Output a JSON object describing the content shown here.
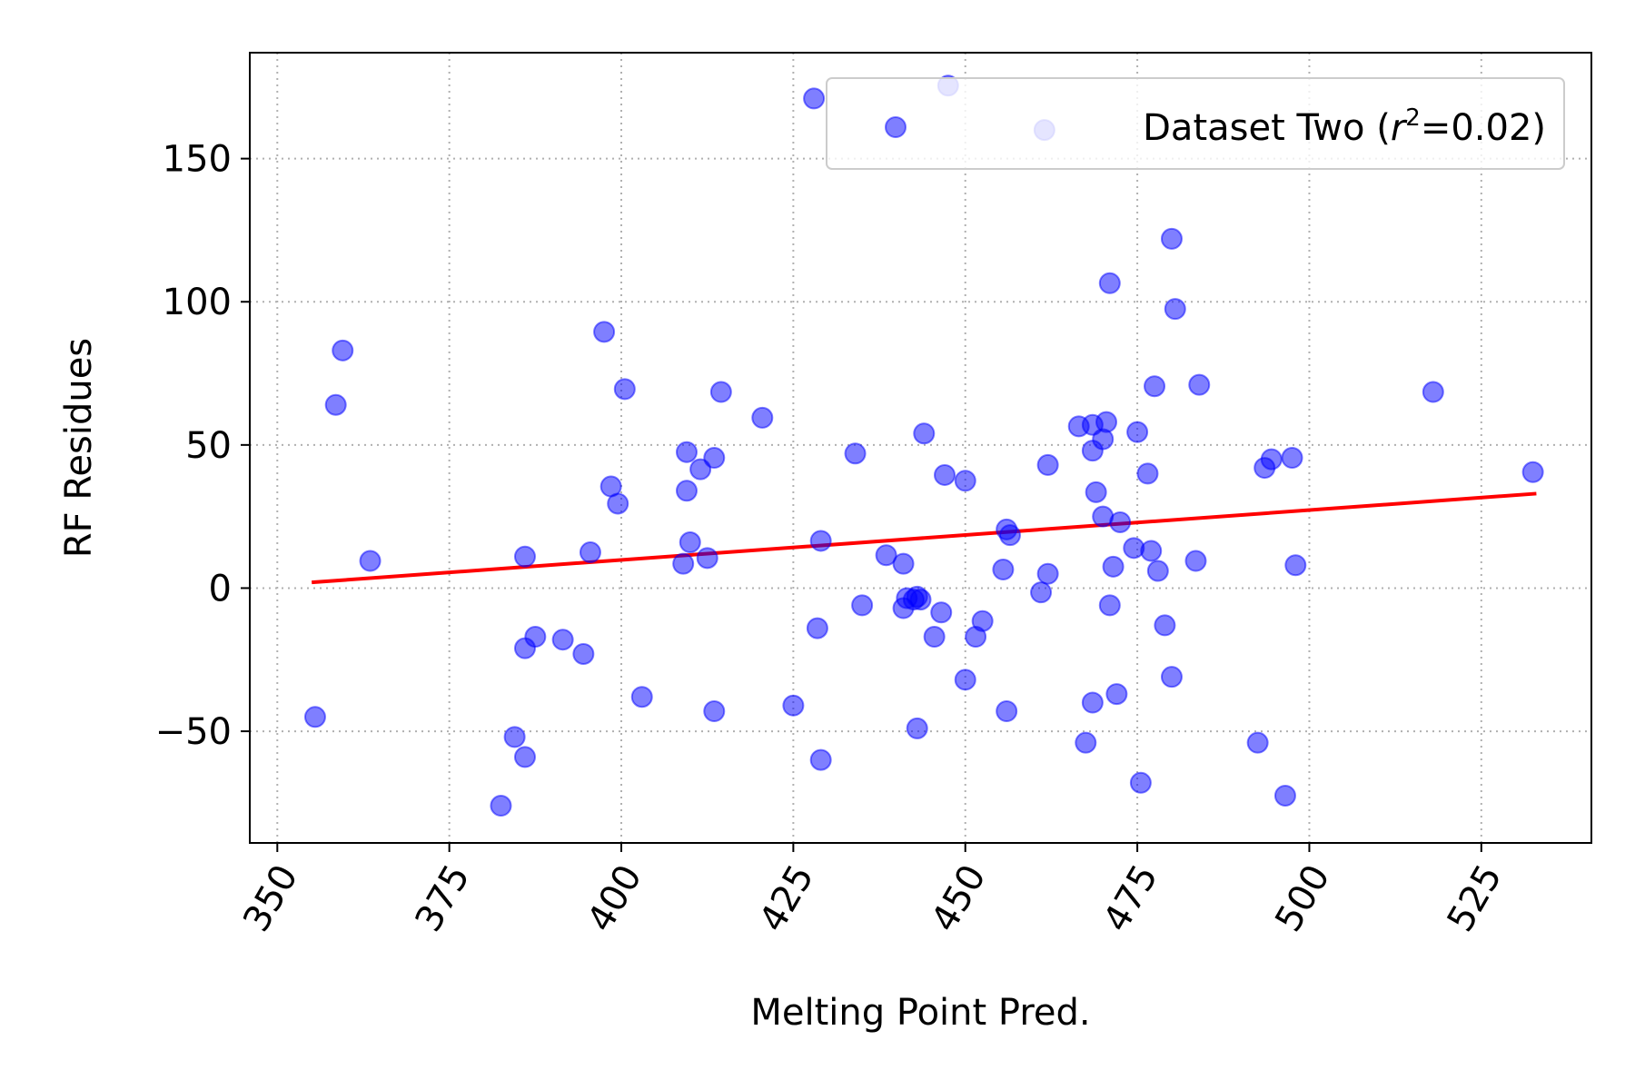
{
  "chart_data": {
    "type": "scatter",
    "xlabel": "Melting Point Pred.",
    "ylabel": "RF Residues",
    "xlim": [
      346,
      541
    ],
    "ylim": [
      -89,
      187
    ],
    "xticks": [
      350,
      375,
      400,
      425,
      450,
      475,
      500,
      525
    ],
    "yticks": [
      -50,
      0,
      50,
      100,
      150
    ],
    "ytick_labels": [
      "−50",
      "0",
      "50",
      "100",
      "150"
    ],
    "grid": true,
    "legend_position": "top-right",
    "legend": {
      "label_prefix": "Dataset Two (",
      "label_var": "r",
      "label_sup": "2",
      "label_suffix": "=0.02)"
    },
    "colors": {
      "points": "#0000ff",
      "fit_line": "#ff0000",
      "grid": "#b0b0b0"
    },
    "series": [
      {
        "points": [
          [
            355.5,
            -45
          ],
          [
            358.5,
            64
          ],
          [
            359.5,
            83
          ],
          [
            363.5,
            9.5
          ],
          [
            382.5,
            -76
          ],
          [
            384.5,
            -52
          ],
          [
            386,
            -59
          ],
          [
            386,
            -21
          ],
          [
            386,
            11
          ],
          [
            387.5,
            -17
          ],
          [
            391.5,
            -18
          ],
          [
            394.5,
            -23
          ],
          [
            395.5,
            12.5
          ],
          [
            397.5,
            89.5
          ],
          [
            398.5,
            35.5
          ],
          [
            399.5,
            29.5
          ],
          [
            400.5,
            69.5
          ],
          [
            403,
            -38
          ],
          [
            409,
            8.5
          ],
          [
            409.5,
            47.5
          ],
          [
            409.5,
            34
          ],
          [
            410,
            16
          ],
          [
            411.5,
            41.5
          ],
          [
            412.5,
            10.5
          ],
          [
            413.5,
            -43
          ],
          [
            413.5,
            45.5
          ],
          [
            414.5,
            68.5
          ],
          [
            420.5,
            59.5
          ],
          [
            425,
            -41
          ],
          [
            428,
            171
          ],
          [
            428.5,
            -14
          ],
          [
            429,
            16.5
          ],
          [
            429,
            -60
          ],
          [
            434,
            47
          ],
          [
            435,
            -6
          ],
          [
            438.5,
            11.5
          ],
          [
            441,
            8.5
          ],
          [
            441,
            -7
          ],
          [
            441.5,
            -3.5
          ],
          [
            442.5,
            -4
          ],
          [
            443,
            -3
          ],
          [
            443,
            -49
          ],
          [
            443.5,
            -4
          ],
          [
            444,
            54
          ],
          [
            445.5,
            -17
          ],
          [
            446.5,
            -8.5
          ],
          [
            447,
            39.5
          ],
          [
            447.5,
            175.5
          ],
          [
            450,
            -32
          ],
          [
            450,
            37.5
          ],
          [
            451.5,
            -17
          ],
          [
            452.5,
            -11.5
          ],
          [
            455.5,
            6.5
          ],
          [
            456,
            -43
          ],
          [
            456,
            20.5
          ],
          [
            456.5,
            18.5
          ],
          [
            461,
            -1.5
          ],
          [
            461.5,
            160
          ],
          [
            462,
            5
          ],
          [
            462,
            43
          ],
          [
            466.5,
            56.5
          ],
          [
            467.5,
            -54
          ],
          [
            468.5,
            -40
          ],
          [
            468.5,
            48
          ],
          [
            468.5,
            57
          ],
          [
            469,
            33.5
          ],
          [
            470,
            52
          ],
          [
            470,
            25
          ],
          [
            470.5,
            58
          ],
          [
            471,
            -6
          ],
          [
            471,
            106.5
          ],
          [
            471.5,
            7.5
          ],
          [
            472,
            -37
          ],
          [
            472.5,
            23
          ],
          [
            474.5,
            14
          ],
          [
            475,
            54.5
          ],
          [
            475.5,
            -68
          ],
          [
            476.5,
            40
          ],
          [
            477,
            13
          ],
          [
            477.5,
            70.5
          ],
          [
            478,
            6
          ],
          [
            479,
            -13
          ],
          [
            480,
            -31
          ],
          [
            480,
            122
          ],
          [
            480.5,
            97.5
          ],
          [
            483.5,
            9.5
          ],
          [
            484,
            71
          ],
          [
            492.5,
            -54
          ],
          [
            493.5,
            42
          ],
          [
            494.5,
            45
          ],
          [
            496.5,
            -72.5
          ],
          [
            497.5,
            45.5
          ],
          [
            498,
            8
          ],
          [
            518,
            68.5
          ],
          [
            532.5,
            40.5
          ]
        ]
      }
    ],
    "fit_line": {
      "x": [
        355,
        533
      ],
      "y": [
        2,
        33
      ]
    }
  }
}
